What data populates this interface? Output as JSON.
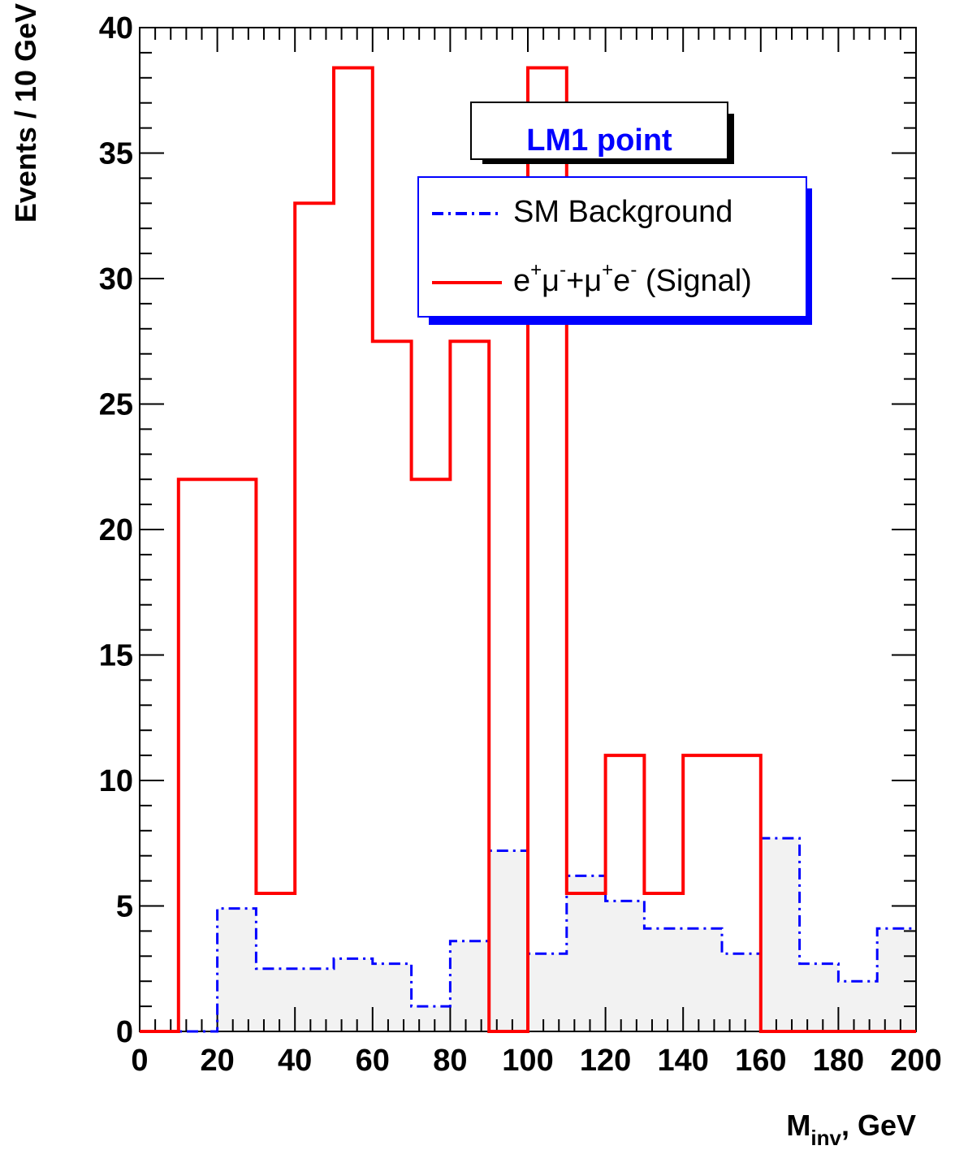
{
  "chart_data": {
    "type": "histogram",
    "title": "LM1 point",
    "xlabel": "M",
    "xlabel_sub": "inv",
    "xlabel_suffix": ", GeV",
    "ylabel": "Events / 10 GeV",
    "xlim": [
      0,
      200
    ],
    "ylim": [
      0,
      40
    ],
    "x_ticks": [
      0,
      20,
      40,
      60,
      80,
      100,
      120,
      140,
      160,
      180,
      200
    ],
    "y_ticks": [
      0,
      5,
      10,
      15,
      20,
      25,
      30,
      35,
      40
    ],
    "bin_edges": [
      0,
      10,
      20,
      30,
      40,
      50,
      60,
      70,
      80,
      90,
      100,
      110,
      120,
      130,
      140,
      150,
      160,
      170,
      180,
      190,
      200
    ],
    "series": [
      {
        "name": "SM Background",
        "style": "dash-dot",
        "color": "#0000ff",
        "fill": "#f2f2f2",
        "values": [
          0,
          0,
          4.9,
          2.5,
          2.5,
          2.9,
          2.7,
          1.0,
          3.6,
          7.2,
          3.1,
          6.2,
          5.2,
          4.1,
          4.1,
          3.1,
          7.7,
          2.7,
          2.0,
          4.1
        ]
      },
      {
        "name_parts": [
          {
            "t": "e"
          },
          {
            "t": "+",
            "sup": true
          },
          {
            "t": "μ"
          },
          {
            "t": "-",
            "sup": true
          },
          {
            "t": "+μ"
          },
          {
            "t": "+",
            "sup": true
          },
          {
            "t": "e"
          },
          {
            "t": "-",
            "sup": true
          },
          {
            "t": " (Signal)"
          }
        ],
        "style": "solid",
        "color": "#ff0000",
        "values": [
          0,
          22,
          22,
          5.5,
          33,
          38.4,
          27.5,
          22,
          27.5,
          0,
          38.4,
          5.5,
          11,
          5.5,
          11,
          11,
          0,
          0,
          0,
          0
        ]
      }
    ],
    "legend_position": "top-right",
    "title_color": "#0000ff"
  }
}
